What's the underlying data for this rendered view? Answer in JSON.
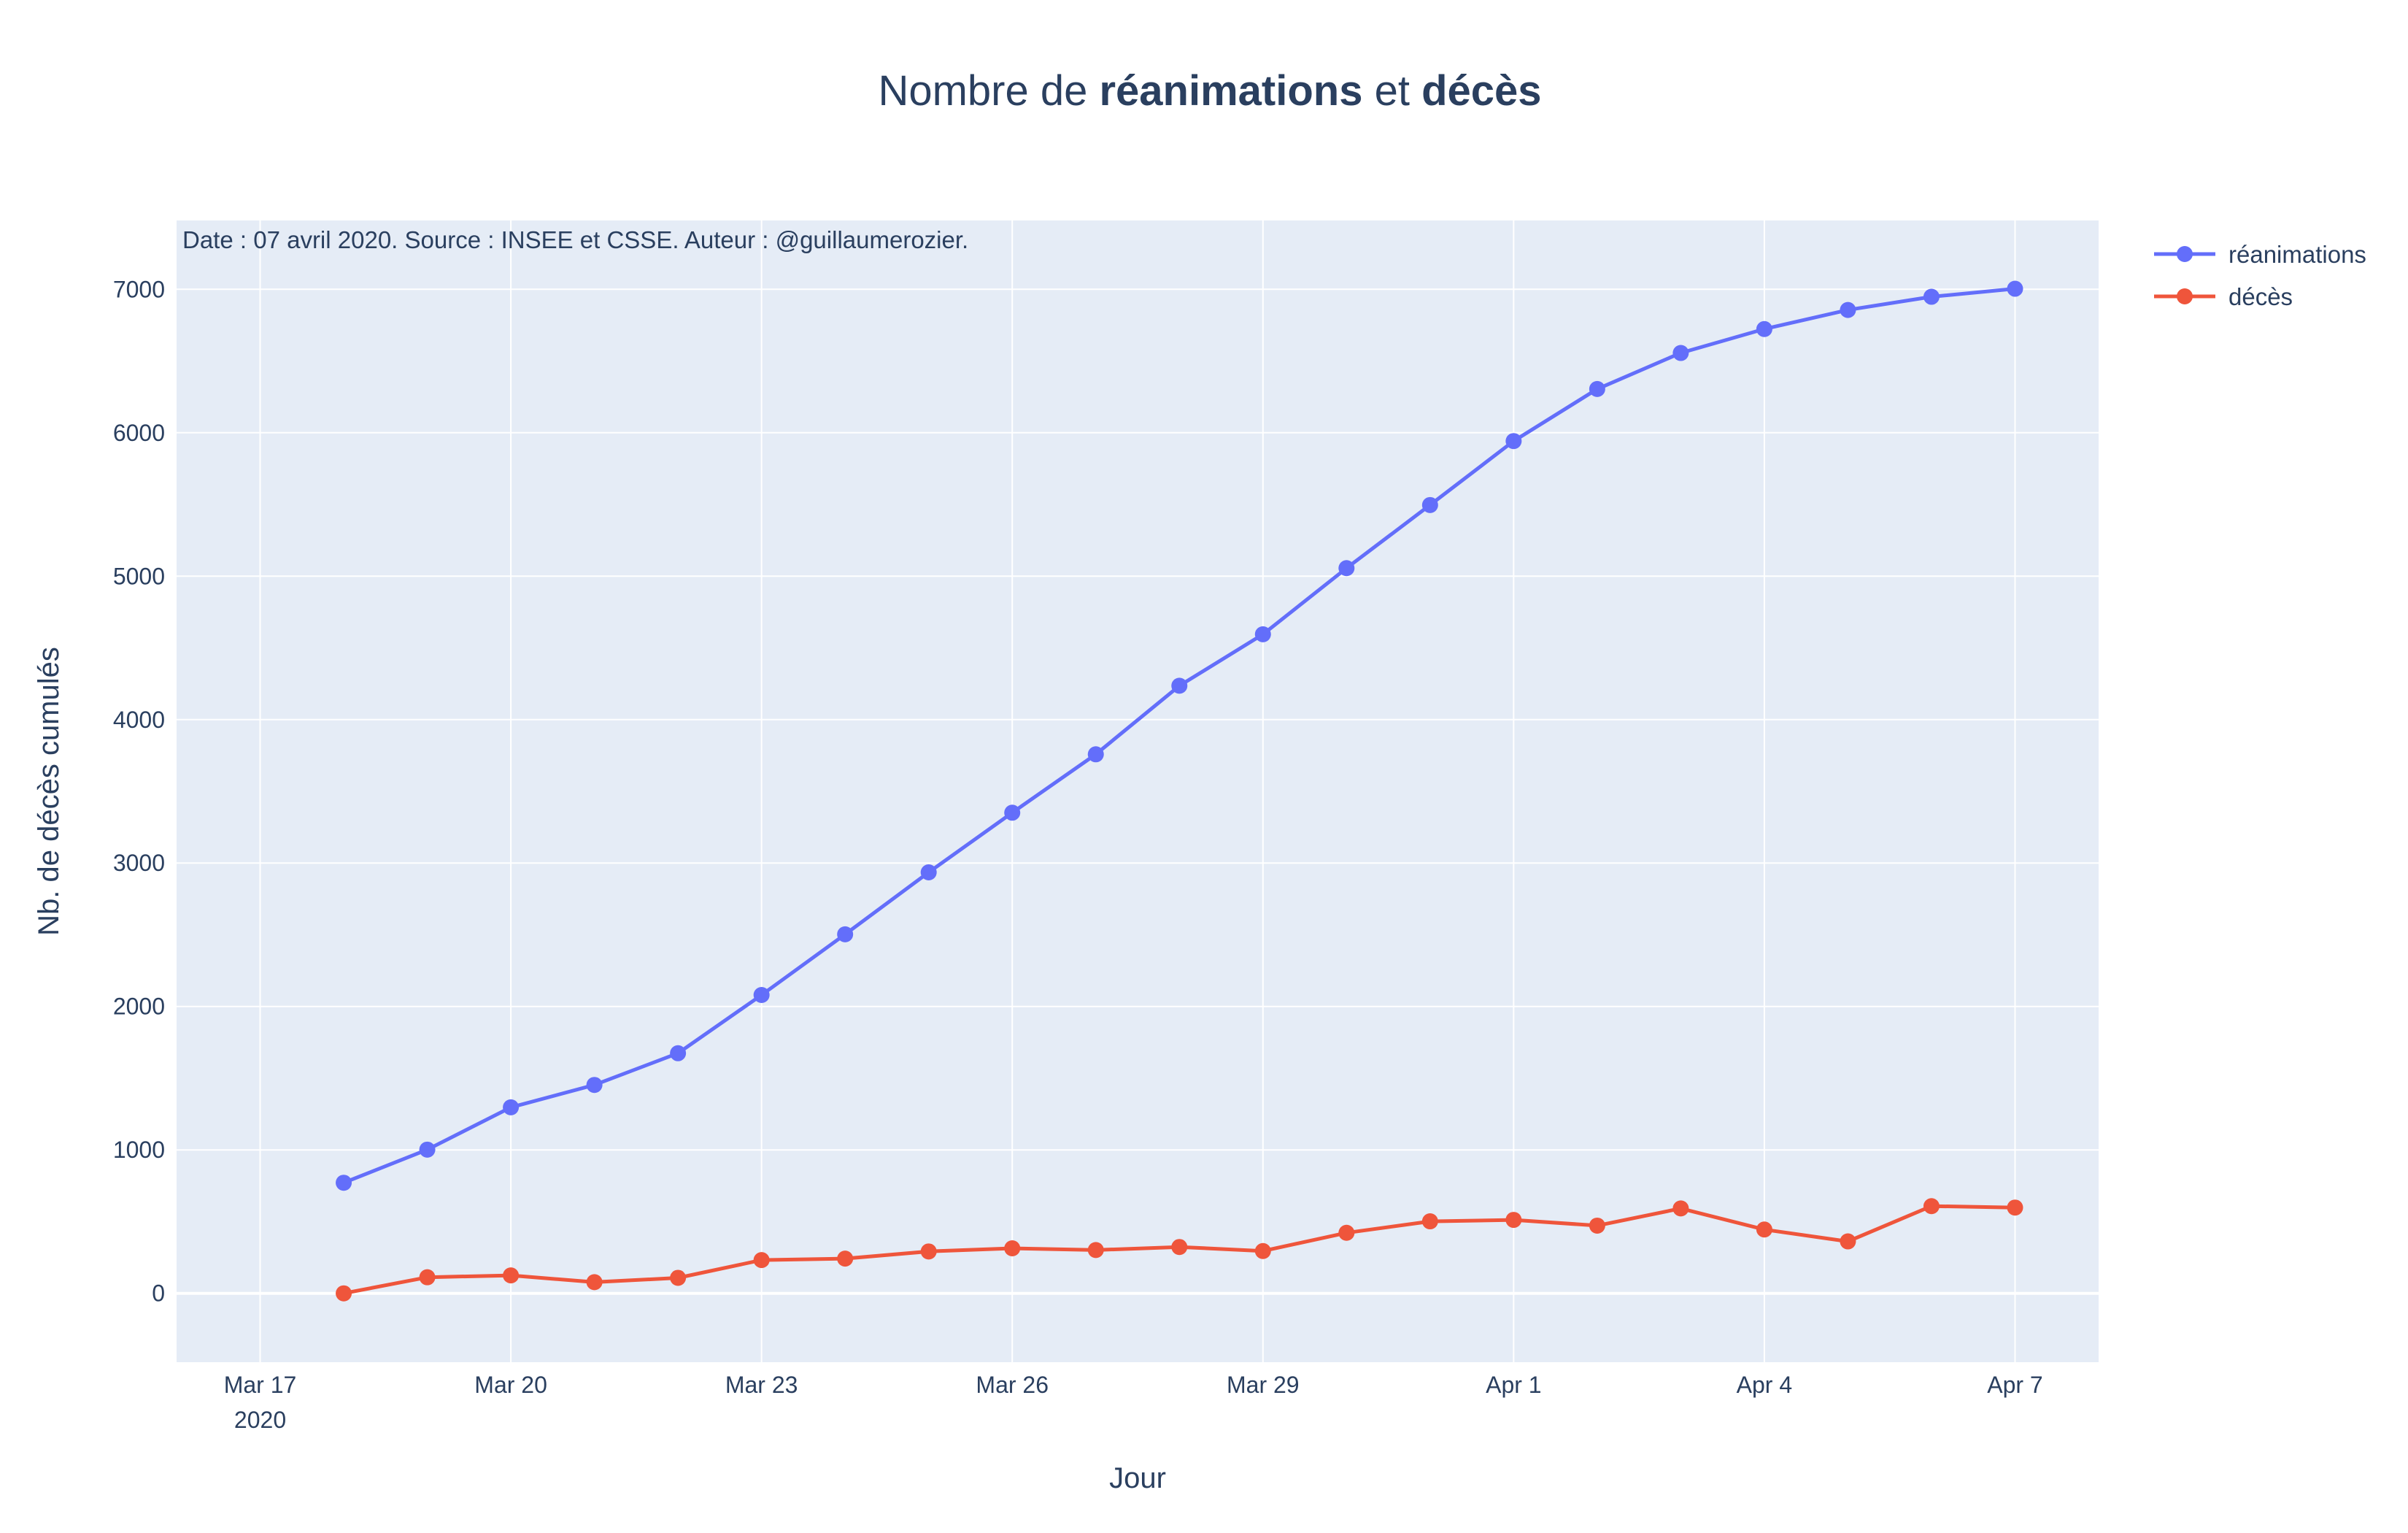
{
  "chart_data": {
    "type": "line",
    "title": {
      "parts": [
        {
          "text": "Nombre de ",
          "bold": false
        },
        {
          "text": "réanimations",
          "bold": true
        },
        {
          "text": " et ",
          "bold": false
        },
        {
          "text": "décès",
          "bold": true
        }
      ]
    },
    "annotation": "Date : 07 avril 2020. Source : INSEE et CSSE. Auteur : @guillaumerozier.",
    "xlabel": "Jour",
    "ylabel": "Nb. de décès cumulés",
    "x_range": [
      "2020-03-16",
      "2020-04-08"
    ],
    "ylim": [
      -480,
      7480
    ],
    "y_ticks": [
      0,
      1000,
      2000,
      3000,
      4000,
      5000,
      6000,
      7000
    ],
    "y_tick_labels": [
      "0",
      "1000",
      "2000",
      "3000",
      "4000",
      "5000",
      "6000",
      "7000"
    ],
    "x_ticks": [
      {
        "date": "2020-03-17",
        "label": "Mar 17",
        "sublabel": "2020"
      },
      {
        "date": "2020-03-20",
        "label": "Mar 20",
        "sublabel": ""
      },
      {
        "date": "2020-03-23",
        "label": "Mar 23",
        "sublabel": ""
      },
      {
        "date": "2020-03-26",
        "label": "Mar 26",
        "sublabel": ""
      },
      {
        "date": "2020-03-29",
        "label": "Mar 29",
        "sublabel": ""
      },
      {
        "date": "2020-04-01",
        "label": "Apr 1",
        "sublabel": ""
      },
      {
        "date": "2020-04-04",
        "label": "Apr 4",
        "sublabel": ""
      },
      {
        "date": "2020-04-07",
        "label": "Apr 7",
        "sublabel": ""
      }
    ],
    "grid": true,
    "legend_position": "top-right",
    "x": [
      "2020-03-18",
      "2020-03-19",
      "2020-03-20",
      "2020-03-21",
      "2020-03-22",
      "2020-03-23",
      "2020-03-24",
      "2020-03-25",
      "2020-03-26",
      "2020-03-27",
      "2020-03-28",
      "2020-03-29",
      "2020-03-30",
      "2020-03-31",
      "2020-04-01",
      "2020-04-02",
      "2020-04-03",
      "2020-04-04",
      "2020-04-05",
      "2020-04-06",
      "2020-04-07"
    ],
    "series": [
      {
        "name": "réanimations",
        "color": "#636efa",
        "values": [
          771,
          1002,
          1297,
          1453,
          1674,
          2080,
          2503,
          2935,
          3351,
          3758,
          4236,
          4595,
          5056,
          5496,
          5942,
          6305,
          6556,
          6723,
          6856,
          6948,
          7004
        ]
      },
      {
        "name": "décès",
        "color": "#ef553b",
        "values": [
          0,
          112,
          125,
          78,
          108,
          232,
          242,
          292,
          314,
          302,
          323,
          295,
          422,
          502,
          512,
          472,
          592,
          445,
          362,
          608,
          598
        ]
      }
    ]
  },
  "colors": {
    "plot_background": "#e5ecf6",
    "grid": "#ffffff",
    "text": "#2a3f5f"
  }
}
